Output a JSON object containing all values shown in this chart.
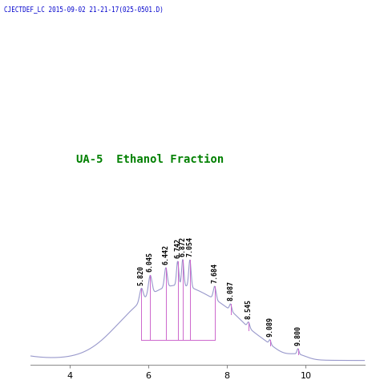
{
  "title": "UA-5  Ethanol Fraction",
  "header_text": "CJECTDEF_LC 2015-09-02 21-21-17(025-0501.D)",
  "title_color": "#008000",
  "header_color": "#0000CD",
  "background_color": "#ffffff",
  "xlim": [
    3.0,
    11.5
  ],
  "ylim": [
    -0.003,
    0.13
  ],
  "peaks": [
    {
      "x": 5.82,
      "label": "5.820"
    },
    {
      "x": 6.045,
      "label": "6.045"
    },
    {
      "x": 6.442,
      "label": "6.442"
    },
    {
      "x": 6.742,
      "label": "6.742"
    },
    {
      "x": 6.872,
      "label": "6.872"
    },
    {
      "x": 7.054,
      "label": "7.054"
    },
    {
      "x": 7.684,
      "label": "7.684"
    },
    {
      "x": 8.087,
      "label": "8.087"
    },
    {
      "x": 8.545,
      "label": "8.545"
    },
    {
      "x": 9.089,
      "label": "9.089"
    },
    {
      "x": 9.8,
      "label": "9.800"
    }
  ],
  "broad_gaussians": [
    {
      "mu": 6.8,
      "sigma": 1.1,
      "amp": 0.068
    },
    {
      "mu": 5.5,
      "sigma": 0.6,
      "amp": 0.01
    },
    {
      "mu": 8.2,
      "sigma": 0.5,
      "amp": 0.012
    },
    {
      "mu": 9.0,
      "sigma": 0.3,
      "amp": 0.005
    },
    {
      "mu": 9.8,
      "sigma": 0.22,
      "amp": 0.004
    }
  ],
  "sharp_peaks": [
    {
      "mu": 5.82,
      "sigma": 0.045,
      "amp": 0.012
    },
    {
      "mu": 6.045,
      "sigma": 0.045,
      "amp": 0.018
    },
    {
      "mu": 6.442,
      "sigma": 0.035,
      "amp": 0.018
    },
    {
      "mu": 6.742,
      "sigma": 0.028,
      "amp": 0.022
    },
    {
      "mu": 6.872,
      "sigma": 0.028,
      "amp": 0.024
    },
    {
      "mu": 7.054,
      "sigma": 0.03,
      "amp": 0.025
    },
    {
      "mu": 7.684,
      "sigma": 0.035,
      "amp": 0.012
    },
    {
      "mu": 8.087,
      "sigma": 0.028,
      "amp": 0.006
    },
    {
      "mu": 8.545,
      "sigma": 0.03,
      "amp": 0.005
    },
    {
      "mu": 9.089,
      "sigma": 0.025,
      "amp": 0.004
    },
    {
      "mu": 9.8,
      "sigma": 0.025,
      "amp": 0.005
    }
  ],
  "line_color": "#9999CC",
  "peak_line_color": "#CC66CC",
  "label_fontsize": 6.0,
  "axis_fontsize": 8,
  "baseline_marked_end": 7.684
}
